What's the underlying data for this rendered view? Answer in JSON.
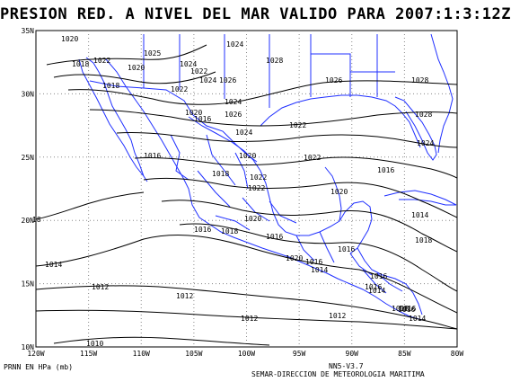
{
  "title": "PRESION RED. A NIVEL DEL MAR VALIDO PARA 2007:1:3:12Z",
  "footer": {
    "units": "PRNN EN HPa (mb)",
    "model": "NN5-V3.7",
    "agency": "SEMAR-DIRECCION DE METEOROLOGIA MARITIMA"
  },
  "colors": {
    "coast": "#2030ff",
    "isobar": "#000000",
    "grid": "#888888"
  },
  "map": {
    "lon_ticks": [
      "120W",
      "115W",
      "110W",
      "105W",
      "100W",
      "95W",
      "90W",
      "85W",
      "80W"
    ],
    "lat_ticks": [
      "35N",
      "30N",
      "25N",
      "20N",
      "15N",
      "10N"
    ],
    "isobar_labels": [
      "1020",
      "1018",
      "1022",
      "1020",
      "1025",
      "1024",
      "1024",
      "1022",
      "1028",
      "1018",
      "1022",
      "1024",
      "1026",
      "1026",
      "1028",
      "1020",
      "1016",
      "1024",
      "1026",
      "1022",
      "1028",
      "1016",
      "1024",
      "1024",
      "1020",
      "1022",
      "1018",
      "1016",
      "1022",
      "1022",
      "1020",
      "1014",
      "1016",
      "1020",
      "1018",
      "1016",
      "1018",
      "1020",
      "1016",
      "1016",
      "1016",
      "1014",
      "1016",
      "1014",
      "1012",
      "1012",
      "1012",
      "1016",
      "1018",
      "1016",
      "1014",
      "1012",
      "1010",
      "18",
      "1014"
    ],
    "grid": "dotted"
  }
}
